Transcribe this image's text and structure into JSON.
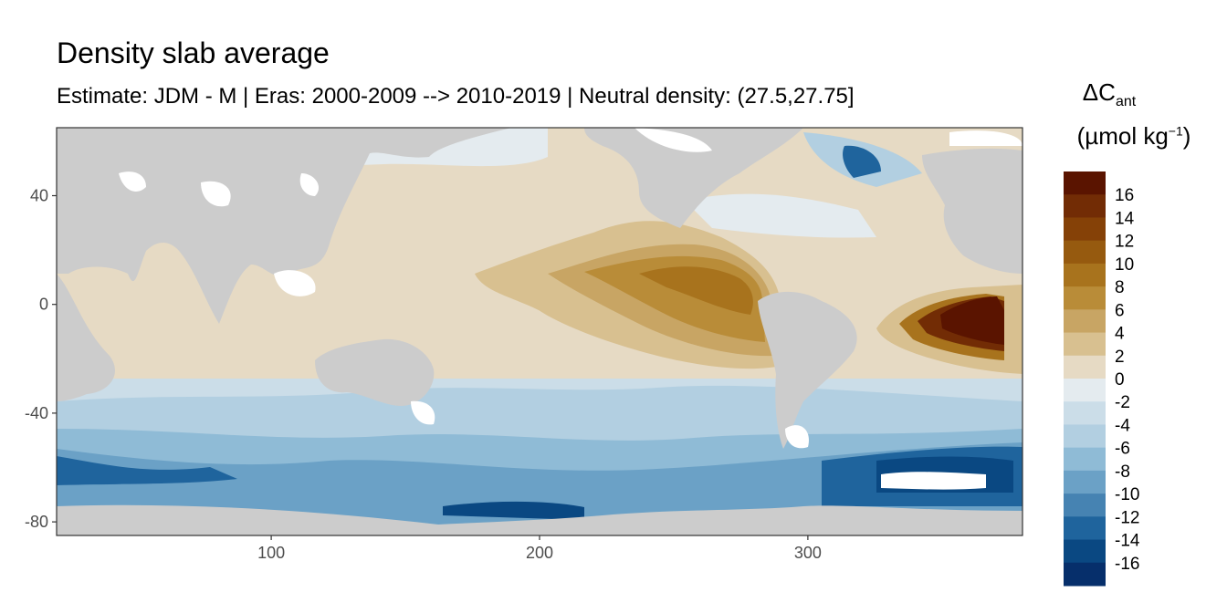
{
  "title": "Density slab average",
  "subtitle": "Estimate: JDM - M | Eras: 2000-2009 --> 2010-2019 | Neutral density: (27.5,27.75]",
  "legend": {
    "symbol": "ΔC",
    "symbol_sub": "ant",
    "unit_open": "(µmol kg",
    "unit_sup": "−1",
    "unit_close": ")"
  },
  "chart_data": {
    "type": "heatmap",
    "title": "Density slab average",
    "subtitle": "Estimate: JDM - M | Eras: 2000-2009 --> 2010-2019 | Neutral density: (27.5,27.75]",
    "xlabel": "",
    "ylabel": "",
    "xlim": [
      20,
      380
    ],
    "ylim": [
      -85,
      65
    ],
    "x_ticks": [
      100,
      200,
      300
    ],
    "x_tick_labels": [
      "100",
      "200",
      "300"
    ],
    "y_ticks": [
      40,
      0,
      -40,
      -80
    ],
    "y_tick_labels": [
      "40",
      "0",
      "-40",
      "-80"
    ],
    "colorbar": {
      "label": "ΔC_ant (µmol kg⁻¹)",
      "breaks": [
        -18,
        -16,
        -14,
        -12,
        -10,
        -8,
        -6,
        -4,
        -2,
        0,
        2,
        4,
        6,
        8,
        10,
        12,
        14,
        16,
        18
      ],
      "tick_labels": [
        "16",
        "14",
        "12",
        "10",
        "8",
        "6",
        "4",
        "2",
        "0",
        "-2",
        "-4",
        "-6",
        "-8",
        "-10",
        "-12",
        "-14",
        "-16"
      ],
      "tick_values": [
        16,
        14,
        12,
        10,
        8,
        6,
        4,
        2,
        0,
        -2,
        -4,
        -6,
        -8,
        -10,
        -12,
        -14,
        -16
      ],
      "colors": [
        "#5a1400",
        "#722c05",
        "#854107",
        "#965a0f",
        "#a8731d",
        "#b98c38",
        "#c8a564",
        "#d8c090",
        "#e6dac4",
        "#e4ebef",
        "#cbdde8",
        "#b2cfe1",
        "#8fbbd6",
        "#6ba1c6",
        "#4683b2",
        "#1f649d",
        "#0a4882",
        "#062f6b",
        "#031e55"
      ]
    },
    "features": {
      "max_positive_anomaly": "Eastern tropical Atlantic (~360E, 0 to -10N), >16",
      "positive_tongue": "Eastern tropical Pacific (~220-290E, 0 to -20N), 6-10",
      "negative_band": "Southern Ocean (-55 to -75N), -8 to -16",
      "land_color": "#cccccc",
      "no_data_color": "#ffffff"
    }
  }
}
